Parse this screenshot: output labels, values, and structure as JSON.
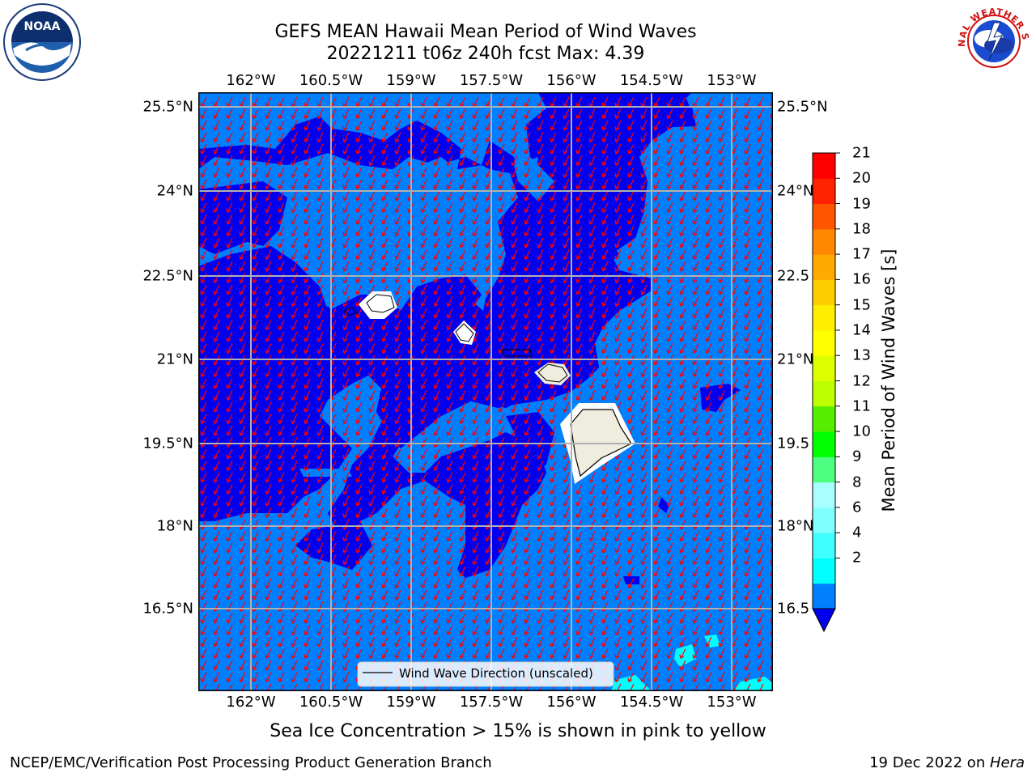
{
  "title_line1": "GEFS MEAN Hawaii Mean Period of Wind Waves",
  "title_line2": "20221211 t06z 240h fcst   Max: 4.39",
  "map": {
    "lon_ticks": [
      "162°W",
      "160.5°W",
      "159°W",
      "157.5°W",
      "156°W",
      "154.5°W",
      "153°W"
    ],
    "lat_ticks": [
      "25.5°N",
      "24°N",
      "22.5°N",
      "21°N",
      "19.5°N",
      "18°N",
      "16.5°N"
    ],
    "lat_ticks_right": [
      "25.5°N",
      "24°N",
      "22.5",
      "21°N",
      "19.5",
      "18°N",
      "16.5"
    ],
    "legend_label": "Wind Wave Direction (unscaled)",
    "arrow_color": "#ff0000",
    "ocean_colors": {
      "band_2_4": "#0080ff",
      "below_2": "#0000ee",
      "band_4_6": "#00ffff",
      "land": "#efedde",
      "grid": "#b0b0b0"
    }
  },
  "colorbar": {
    "label": "Mean Period of Wind Waves [s]",
    "ticks": [
      "21",
      "20",
      "19",
      "18",
      "17",
      "16",
      "15",
      "14",
      "13",
      "12",
      "11",
      "10",
      "9",
      "8",
      "6",
      "4",
      "2"
    ],
    "levels": [
      2,
      4,
      6,
      8,
      9,
      10,
      11,
      12,
      13,
      14,
      15,
      16,
      17,
      18,
      19,
      20,
      21
    ],
    "colors": [
      "#0080ff",
      "#00ffff",
      "#40ffff",
      "#80ffff",
      "#a8ffff",
      "#4dff80",
      "#00ff00",
      "#55ee00",
      "#bbff00",
      "#ddff00",
      "#ffff00",
      "#ffee00",
      "#ffcc00",
      "#ffaa00",
      "#ff8800",
      "#ff5500",
      "#ff2200",
      "#ff0000"
    ],
    "under_color": "#0000ee"
  },
  "sea_ice_note": "Sea Ice Concentration > 15% is shown in pink to yellow",
  "footer": {
    "left": "NCEP/EMC/Verification Post Processing Product Generation Branch",
    "right_prefix": "19 Dec 2022 on ",
    "right_host": "Hera"
  },
  "logos": {
    "noaa_text": "NOAA",
    "nws_text": "NATIONAL WEATHER SERVICE"
  }
}
